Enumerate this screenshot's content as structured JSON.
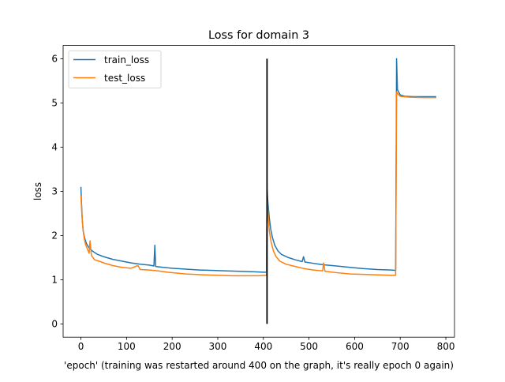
{
  "chart_data": {
    "type": "line",
    "title": "Loss for domain 3",
    "xlabel": "'epoch' (training was restarted around 400 on the graph, it's really epoch 0 again)",
    "ylabel": "loss",
    "xlim": [
      -39,
      819
    ],
    "ylim": [
      -0.3,
      6.3
    ],
    "x_ticks": [
      0,
      100,
      200,
      300,
      400,
      500,
      600,
      700,
      800
    ],
    "y_ticks": [
      0,
      1,
      2,
      3,
      4,
      5,
      6
    ],
    "grid": false,
    "legend_position": "upper-left",
    "series": [
      {
        "name": "train_loss",
        "color": "#1f77b4",
        "points": [
          [
            0,
            3.1
          ],
          [
            1,
            2.8
          ],
          [
            3,
            2.35
          ],
          [
            5,
            2.1
          ],
          [
            8,
            1.95
          ],
          [
            12,
            1.82
          ],
          [
            18,
            1.72
          ],
          [
            25,
            1.65
          ],
          [
            35,
            1.58
          ],
          [
            50,
            1.52
          ],
          [
            70,
            1.46
          ],
          [
            90,
            1.42
          ],
          [
            110,
            1.38
          ],
          [
            130,
            1.35
          ],
          [
            150,
            1.33
          ],
          [
            160,
            1.31
          ],
          [
            162,
            1.78
          ],
          [
            164,
            1.3
          ],
          [
            180,
            1.28
          ],
          [
            200,
            1.26
          ],
          [
            230,
            1.24
          ],
          [
            260,
            1.22
          ],
          [
            290,
            1.21
          ],
          [
            320,
            1.2
          ],
          [
            350,
            1.19
          ],
          [
            380,
            1.18
          ],
          [
            400,
            1.17
          ],
          [
            407,
            1.17
          ],
          [
            408,
            3.05
          ],
          [
            410,
            2.75
          ],
          [
            413,
            2.4
          ],
          [
            416,
            2.15
          ],
          [
            420,
            1.95
          ],
          [
            425,
            1.78
          ],
          [
            432,
            1.65
          ],
          [
            440,
            1.57
          ],
          [
            455,
            1.5
          ],
          [
            470,
            1.45
          ],
          [
            485,
            1.41
          ],
          [
            488,
            1.52
          ],
          [
            491,
            1.4
          ],
          [
            510,
            1.37
          ],
          [
            530,
            1.34
          ],
          [
            560,
            1.31
          ],
          [
            590,
            1.28
          ],
          [
            620,
            1.25
          ],
          [
            650,
            1.23
          ],
          [
            680,
            1.22
          ],
          [
            690,
            1.21
          ],
          [
            692,
            6.0
          ],
          [
            694,
            5.3
          ],
          [
            700,
            5.18
          ],
          [
            710,
            5.15
          ],
          [
            730,
            5.14
          ],
          [
            750,
            5.14
          ],
          [
            779,
            5.14
          ]
        ]
      },
      {
        "name": "test_loss",
        "color": "#ff7f0e",
        "points": [
          [
            0,
            2.9
          ],
          [
            2,
            2.5
          ],
          [
            4,
            2.2
          ],
          [
            7,
            1.95
          ],
          [
            10,
            1.8
          ],
          [
            14,
            1.7
          ],
          [
            18,
            1.6
          ],
          [
            20,
            1.88
          ],
          [
            23,
            1.55
          ],
          [
            30,
            1.45
          ],
          [
            40,
            1.42
          ],
          [
            50,
            1.38
          ],
          [
            70,
            1.32
          ],
          [
            90,
            1.28
          ],
          [
            110,
            1.26
          ],
          [
            125,
            1.32
          ],
          [
            130,
            1.23
          ],
          [
            150,
            1.22
          ],
          [
            170,
            1.2
          ],
          [
            190,
            1.17
          ],
          [
            210,
            1.15
          ],
          [
            230,
            1.13
          ],
          [
            250,
            1.12
          ],
          [
            270,
            1.11
          ],
          [
            300,
            1.1
          ],
          [
            330,
            1.09
          ],
          [
            360,
            1.09
          ],
          [
            390,
            1.09
          ],
          [
            407,
            1.1
          ],
          [
            408,
            2.95
          ],
          [
            410,
            2.55
          ],
          [
            413,
            2.1
          ],
          [
            417,
            1.85
          ],
          [
            422,
            1.65
          ],
          [
            428,
            1.52
          ],
          [
            436,
            1.42
          ],
          [
            450,
            1.35
          ],
          [
            470,
            1.3
          ],
          [
            490,
            1.25
          ],
          [
            510,
            1.22
          ],
          [
            530,
            1.2
          ],
          [
            532,
            1.38
          ],
          [
            535,
            1.19
          ],
          [
            560,
            1.16
          ],
          [
            590,
            1.13
          ],
          [
            620,
            1.12
          ],
          [
            650,
            1.11
          ],
          [
            680,
            1.1
          ],
          [
            690,
            1.1
          ],
          [
            692,
            5.25
          ],
          [
            695,
            5.2
          ],
          [
            700,
            5.15
          ],
          [
            720,
            5.13
          ],
          [
            750,
            5.12
          ],
          [
            779,
            5.12
          ]
        ]
      }
    ],
    "vertical_marker": {
      "x": 408,
      "y_range": [
        0,
        6
      ],
      "color": "#000000"
    }
  }
}
